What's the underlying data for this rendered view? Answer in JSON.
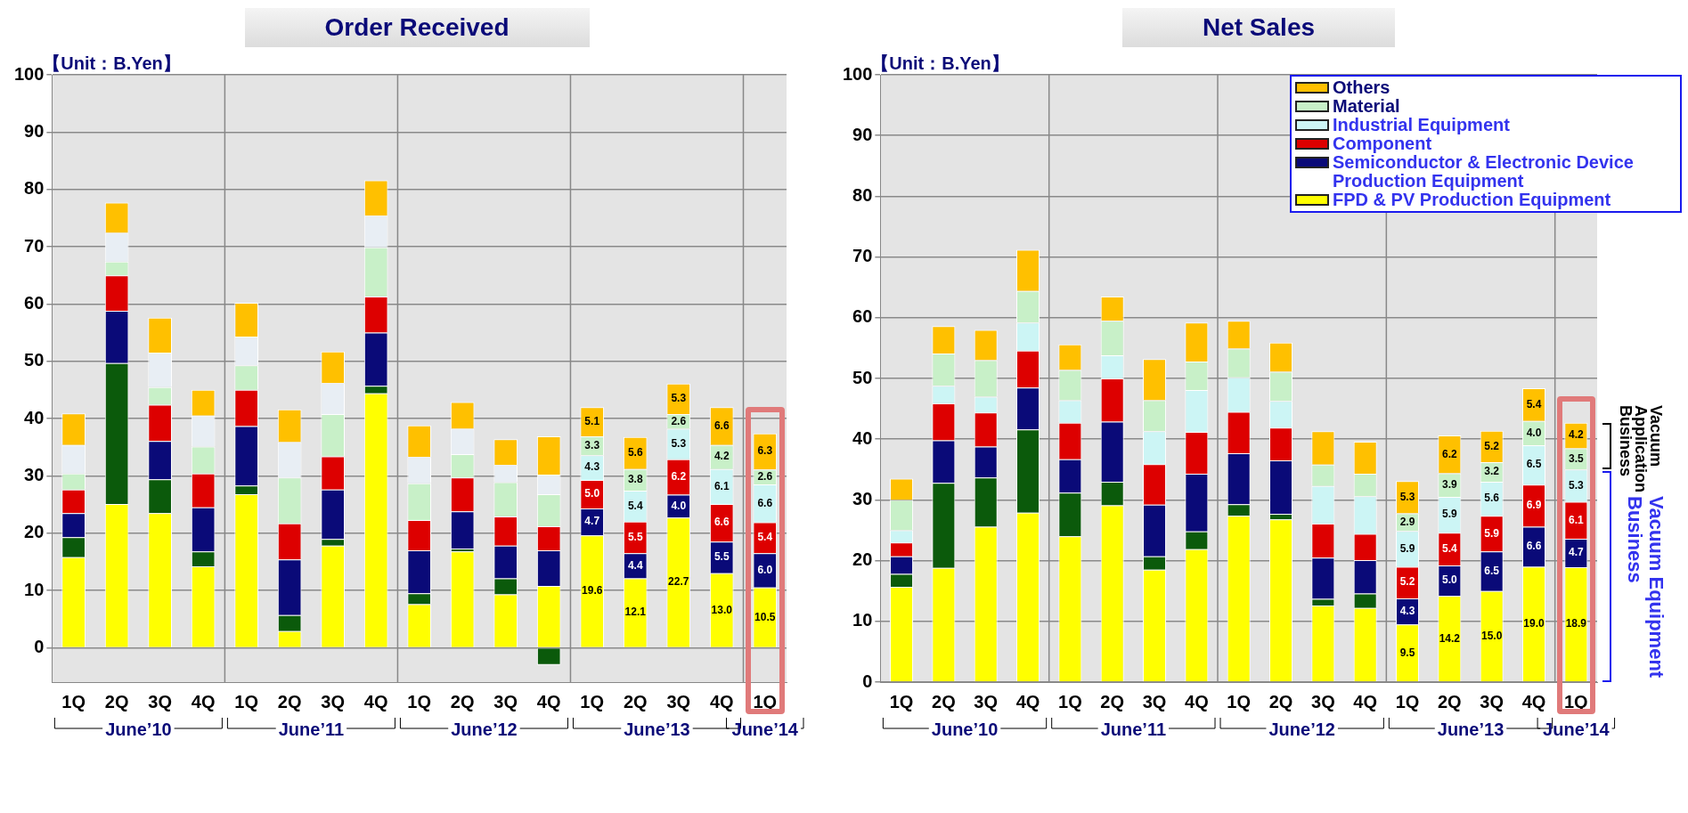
{
  "chart_data": [
    {
      "type": "bar",
      "title": "Order Received",
      "stacked": true,
      "grid": "y",
      "ylim": [
        -6,
        100
      ],
      "yticks": [
        0,
        10,
        20,
        30,
        40,
        50,
        60,
        70,
        80,
        90,
        100
      ],
      "categories": [
        "1Q",
        "2Q",
        "3Q",
        "4Q",
        "1Q",
        "2Q",
        "3Q",
        "4Q",
        "1Q",
        "2Q",
        "3Q",
        "4Q",
        "1Q",
        "2Q",
        "3Q",
        "4Q",
        "1Q"
      ],
      "annotations": [
        "【Unit：B.Yen】",
        "June’10",
        "June’11",
        "June’12",
        "June’13",
        "June’14"
      ],
      "series": [
        {
          "color": "#ffff00",
          "values": [
            15.8,
            25.1,
            23.5,
            14.2,
            26.8,
            2.9,
            17.8,
            44.4,
            7.6,
            16.8,
            9.3,
            10.8,
            19.6,
            12.1,
            22.7,
            13.0,
            10.5
          ],
          "value_labels": [
            null,
            null,
            null,
            null,
            null,
            null,
            null,
            null,
            null,
            null,
            null,
            null,
            "19.6",
            "12.1",
            "22.7",
            "13.0",
            "10.5"
          ]
        },
        {
          "color": "#0b5a0b",
          "values": [
            3.5,
            24.6,
            5.9,
            2.6,
            1.5,
            2.8,
            1.2,
            1.3,
            1.9,
            0.5,
            2.8,
            -3.0,
            null,
            null,
            null,
            null,
            null
          ]
        },
        {
          "color": "#0a0a78",
          "values": [
            4.2,
            9.1,
            6.7,
            7.7,
            10.4,
            9.7,
            8.6,
            9.3,
            7.5,
            6.5,
            5.7,
            6.2,
            4.7,
            4.4,
            4.0,
            5.5,
            6.0
          ],
          "value_labels": [
            null,
            null,
            null,
            null,
            null,
            null,
            null,
            null,
            null,
            null,
            null,
            null,
            "4.7",
            "4.4",
            "4.0",
            "5.5",
            "6.0"
          ]
        },
        {
          "color": "#dd0000",
          "values": [
            4.1,
            6.2,
            6.3,
            5.9,
            6.3,
            6.3,
            5.8,
            6.3,
            5.3,
            5.9,
            5.1,
            4.2,
            5.0,
            5.5,
            6.2,
            6.6,
            5.4
          ],
          "value_labels": [
            null,
            null,
            null,
            null,
            null,
            null,
            null,
            null,
            null,
            null,
            null,
            null,
            "5.0",
            "5.5",
            "6.2",
            "6.6",
            "5.4"
          ]
        },
        {
          "color": "#ccf5f5",
          "values": [
            null,
            null,
            null,
            null,
            null,
            null,
            null,
            null,
            null,
            null,
            null,
            null,
            4.3,
            5.4,
            5.3,
            6.1,
            6.6
          ],
          "value_labels": [
            null,
            null,
            null,
            null,
            null,
            null,
            null,
            null,
            null,
            null,
            null,
            null,
            "4.3",
            "5.4",
            "5.3",
            "6.1",
            "6.6"
          ]
        },
        {
          "color": "#c8f0c8",
          "values": [
            2.8,
            2.4,
            3.1,
            4.7,
            4.3,
            8.0,
            7.4,
            8.6,
            6.4,
            4.1,
            6.0,
            5.6,
            3.3,
            3.8,
            2.6,
            4.2,
            2.6
          ],
          "value_labels": [
            null,
            null,
            null,
            null,
            null,
            null,
            null,
            null,
            null,
            null,
            null,
            null,
            "3.3",
            "3.8",
            "2.6",
            "4.2",
            "2.6"
          ]
        },
        {
          "color": "#e8eef4",
          "values": [
            5.0,
            5.0,
            6.0,
            5.4,
            5.0,
            6.2,
            5.4,
            5.5,
            4.6,
            4.4,
            3.0,
            3.4,
            null,
            null,
            null,
            null,
            null
          ]
        },
        {
          "color": "#ffc000",
          "values": [
            5.5,
            5.3,
            6.1,
            4.5,
            5.9,
            5.7,
            5.5,
            6.2,
            5.5,
            4.7,
            4.5,
            6.7,
            5.1,
            5.6,
            5.3,
            6.6,
            6.3
          ],
          "value_labels": [
            null,
            null,
            null,
            null,
            null,
            null,
            null,
            null,
            null,
            null,
            null,
            null,
            "5.1",
            "5.6",
            "5.3",
            "6.6",
            "6.3"
          ]
        }
      ]
    },
    {
      "type": "bar",
      "title": "Net Sales",
      "stacked": true,
      "grid": "y",
      "legend": "top right",
      "ylim": [
        0,
        100
      ],
      "yticks": [
        0,
        10,
        20,
        30,
        40,
        50,
        60,
        70,
        80,
        90,
        100
      ],
      "categories": [
        "1Q",
        "2Q",
        "3Q",
        "4Q",
        "1Q",
        "2Q",
        "3Q",
        "4Q",
        "1Q",
        "2Q",
        "3Q",
        "4Q",
        "1Q",
        "2Q",
        "3Q",
        "4Q",
        "1Q"
      ],
      "annotations": [
        "【Unit：B.Yen】",
        "June’10",
        "June’11",
        "June’12",
        "June’13",
        "June’14",
        "Vacuum Application Business",
        "Vacuum Equipment Business"
      ],
      "series": [
        {
          "name": "FPD & PV Production Equipment",
          "color": "#ffff00",
          "values": [
            15.7,
            18.8,
            25.6,
            27.9,
            24.0,
            29.1,
            18.5,
            21.9,
            27.4,
            26.8,
            12.6,
            12.2,
            9.5,
            14.2,
            15.0,
            19.0,
            18.9
          ],
          "value_labels": [
            null,
            null,
            null,
            null,
            null,
            null,
            null,
            null,
            null,
            null,
            null,
            null,
            "9.5",
            "14.2",
            "15.0",
            "19.0",
            "18.9"
          ]
        },
        {
          "color": "#0b5a0b",
          "values": [
            2.1,
            14.0,
            8.1,
            13.7,
            7.2,
            3.9,
            2.2,
            2.9,
            1.9,
            0.9,
            1.1,
            2.4,
            null,
            null,
            null,
            null,
            null
          ]
        },
        {
          "name": "Semiconductor & Electronic Device Production Equipment",
          "color": "#0a0a78",
          "values": [
            2.9,
            7.0,
            5.1,
            6.9,
            5.5,
            9.9,
            8.5,
            9.5,
            8.4,
            8.8,
            6.8,
            5.5,
            4.3,
            5.0,
            6.5,
            6.6,
            4.7
          ],
          "value_labels": [
            null,
            null,
            null,
            null,
            null,
            null,
            null,
            null,
            null,
            null,
            null,
            null,
            "4.3",
            "5.0",
            "6.5",
            "6.6",
            "4.7"
          ]
        },
        {
          "name": "Component",
          "color": "#dd0000",
          "values": [
            2.3,
            6.1,
            5.6,
            6.1,
            6.0,
            7.1,
            6.7,
            6.9,
            6.8,
            5.4,
            5.6,
            4.3,
            5.2,
            5.4,
            5.9,
            6.9,
            6.1
          ],
          "value_labels": [
            null,
            null,
            null,
            null,
            null,
            null,
            null,
            null,
            null,
            null,
            null,
            null,
            "5.2",
            "5.4",
            "5.9",
            "6.9",
            "6.1"
          ]
        },
        {
          "name": "Industrial Equipment",
          "color": "#ccf5f5",
          "values": [
            2.0,
            2.9,
            2.6,
            4.6,
            3.7,
            3.8,
            5.4,
            6.9,
            5.7,
            4.4,
            6.2,
            6.2,
            5.9,
            5.9,
            5.6,
            6.5,
            5.3
          ],
          "value_labels": [
            null,
            null,
            null,
            null,
            null,
            null,
            null,
            null,
            null,
            null,
            null,
            null,
            "5.9",
            "5.9",
            "5.6",
            "6.5",
            "5.3"
          ]
        },
        {
          "name": "Material",
          "color": "#c8f0c8",
          "values": [
            5.0,
            5.3,
            6.0,
            5.2,
            5.0,
            5.7,
            5.1,
            4.7,
            4.7,
            4.8,
            3.5,
            3.7,
            2.9,
            3.9,
            3.2,
            4.0,
            3.5
          ],
          "value_labels": [
            null,
            null,
            null,
            null,
            null,
            null,
            null,
            null,
            null,
            null,
            null,
            null,
            "2.9",
            "3.9",
            "3.2",
            "4.0",
            "3.5"
          ]
        },
        {
          "name": "Others",
          "color": "#ffc000",
          "values": [
            3.5,
            4.5,
            5.0,
            6.8,
            4.2,
            4.0,
            6.8,
            6.4,
            4.6,
            4.8,
            5.5,
            5.3,
            5.3,
            6.2,
            5.2,
            5.4,
            4.2
          ],
          "value_labels": [
            null,
            null,
            null,
            null,
            null,
            null,
            null,
            null,
            null,
            null,
            null,
            null,
            "5.3",
            "6.2",
            "5.2",
            "5.4",
            "4.2"
          ]
        }
      ]
    }
  ]
}
